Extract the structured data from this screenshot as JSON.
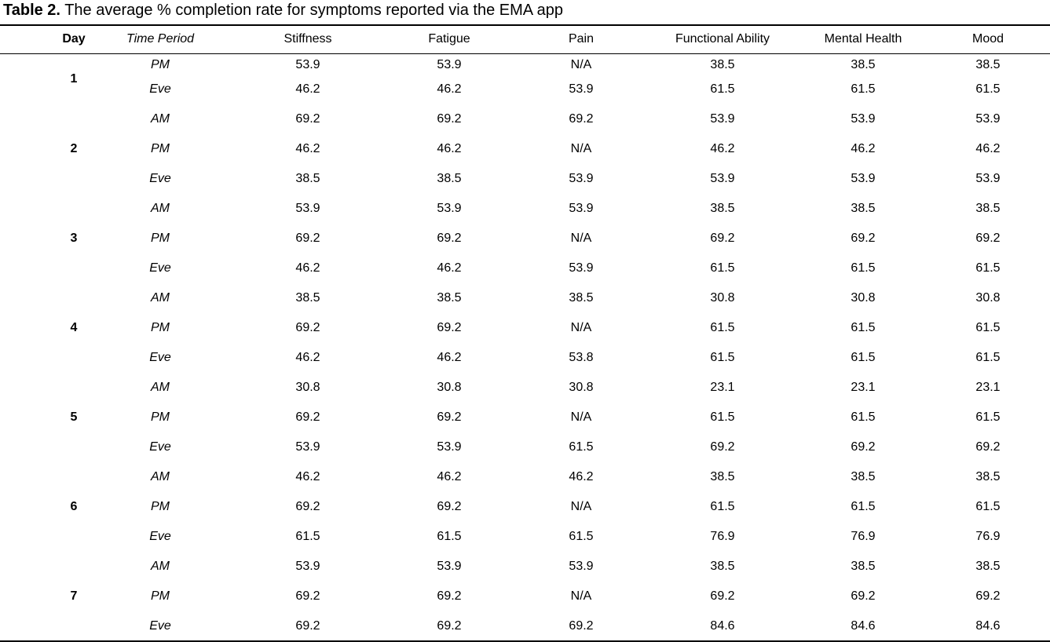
{
  "caption": {
    "label": "Table 2.",
    "text": " The average % completion rate for symptoms reported via the EMA app"
  },
  "columns": [
    "Day",
    "Time Period",
    "Stiffness",
    "Fatigue",
    "Pain",
    "Functional Ability",
    "Mental Health",
    "Mood"
  ],
  "days": [
    {
      "day": "1",
      "rows": [
        {
          "period": "PM",
          "values": [
            "53.9",
            "53.9",
            "N/A",
            "38.5",
            "38.5",
            "38.5"
          ]
        },
        {
          "period": "Eve",
          "values": [
            "46.2",
            "46.2",
            "53.9",
            "61.5",
            "61.5",
            "61.5"
          ]
        }
      ]
    },
    {
      "day": "2",
      "rows": [
        {
          "period": "AM",
          "values": [
            "69.2",
            "69.2",
            "69.2",
            "53.9",
            "53.9",
            "53.9"
          ]
        },
        {
          "period": "PM",
          "values": [
            "46.2",
            "46.2",
            "N/A",
            "46.2",
            "46.2",
            "46.2"
          ]
        },
        {
          "period": "Eve",
          "values": [
            "38.5",
            "38.5",
            "53.9",
            "53.9",
            "53.9",
            "53.9"
          ]
        }
      ]
    },
    {
      "day": "3",
      "rows": [
        {
          "period": "AM",
          "values": [
            "53.9",
            "53.9",
            "53.9",
            "38.5",
            "38.5",
            "38.5"
          ]
        },
        {
          "period": "PM",
          "values": [
            "69.2",
            "69.2",
            "N/A",
            "69.2",
            "69.2",
            "69.2"
          ]
        },
        {
          "period": "Eve",
          "values": [
            "46.2",
            "46.2",
            "53.9",
            "61.5",
            "61.5",
            "61.5"
          ]
        }
      ]
    },
    {
      "day": "4",
      "rows": [
        {
          "period": "AM",
          "values": [
            "38.5",
            "38.5",
            "38.5",
            "30.8",
            "30.8",
            "30.8"
          ]
        },
        {
          "period": "PM",
          "values": [
            "69.2",
            "69.2",
            "N/A",
            "61.5",
            "61.5",
            "61.5"
          ]
        },
        {
          "period": "Eve",
          "values": [
            "46.2",
            "46.2",
            "53.8",
            "61.5",
            "61.5",
            "61.5"
          ]
        }
      ]
    },
    {
      "day": "5",
      "rows": [
        {
          "period": "AM",
          "values": [
            "30.8",
            "30.8",
            "30.8",
            "23.1",
            "23.1",
            "23.1"
          ]
        },
        {
          "period": "PM",
          "values": [
            "69.2",
            "69.2",
            "N/A",
            "61.5",
            "61.5",
            "61.5"
          ]
        },
        {
          "period": "Eve",
          "values": [
            "53.9",
            "53.9",
            "61.5",
            "69.2",
            "69.2",
            "69.2"
          ]
        }
      ]
    },
    {
      "day": "6",
      "rows": [
        {
          "period": "AM",
          "values": [
            "46.2",
            "46.2",
            "46.2",
            "38.5",
            "38.5",
            "38.5"
          ]
        },
        {
          "period": "PM",
          "values": [
            "69.2",
            "69.2",
            "N/A",
            "61.5",
            "61.5",
            "61.5"
          ]
        },
        {
          "period": "Eve",
          "values": [
            "61.5",
            "61.5",
            "61.5",
            "76.9",
            "76.9",
            "76.9"
          ]
        }
      ]
    },
    {
      "day": "7",
      "rows": [
        {
          "period": "AM",
          "values": [
            "53.9",
            "53.9",
            "53.9",
            "38.5",
            "38.5",
            "38.5"
          ]
        },
        {
          "period": "PM",
          "values": [
            "69.2",
            "69.2",
            "N/A",
            "69.2",
            "69.2",
            "69.2"
          ]
        },
        {
          "period": "Eve",
          "values": [
            "69.2",
            "69.2",
            "69.2",
            "84.6",
            "84.6",
            "84.6"
          ]
        }
      ]
    }
  ]
}
